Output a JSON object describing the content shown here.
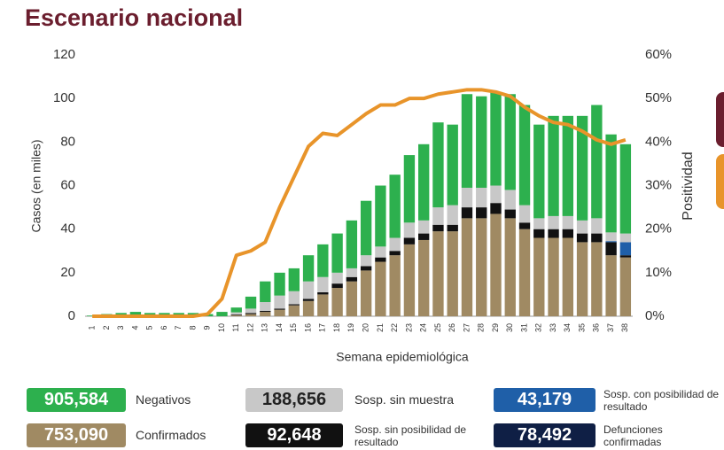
{
  "chart_data": {
    "type": "stacked-bar-line",
    "title": "Escenario nacional",
    "y_label": "Casos (en miles)",
    "y2_label": "Positividad",
    "x_label": "Semana epidemiológica",
    "categories": [
      "1",
      "2",
      "3",
      "4",
      "5",
      "6",
      "7",
      "8",
      "9",
      "10",
      "11",
      "12",
      "13",
      "14",
      "15",
      "16",
      "17",
      "18",
      "19",
      "20",
      "21",
      "22",
      "23",
      "24",
      "25",
      "26",
      "27",
      "28",
      "29",
      "30",
      "31",
      "32",
      "33",
      "34",
      "35",
      "36",
      "37",
      "38"
    ],
    "ylim": [
      0,
      120
    ],
    "yticks": [
      0,
      20,
      40,
      60,
      80,
      100,
      120
    ],
    "y2lim": [
      0,
      60
    ],
    "y2ticks": [
      {
        "value": 0,
        "label": "0%"
      },
      {
        "value": 10,
        "label": "10%"
      },
      {
        "value": 20,
        "label": "20%"
      },
      {
        "value": 30,
        "label": "30%"
      },
      {
        "value": 40,
        "label": "40%"
      },
      {
        "value": 50,
        "label": "50%"
      },
      {
        "value": 60,
        "label": "60%"
      }
    ],
    "series": [
      {
        "name": "Confirmados",
        "color": "#a08a63",
        "total": 753090,
        "total_label": "753,090",
        "values": [
          0,
          0,
          0,
          0,
          0,
          0,
          0,
          0,
          0,
          0,
          0.5,
          1,
          2,
          3,
          5,
          7,
          10,
          13,
          16,
          21,
          25,
          28,
          33,
          35,
          39,
          39,
          45,
          45,
          47,
          45,
          40,
          36,
          36,
          36,
          34,
          34,
          28,
          27
        ]
      },
      {
        "name": "Sosp. sin posibilidad de resultado",
        "color": "#111111",
        "total": 92648,
        "total_label": "92,648",
        "values": [
          0,
          0,
          0,
          0,
          0,
          0,
          0,
          0,
          0,
          0,
          0.3,
          0.5,
          0.5,
          0.5,
          0.5,
          1,
          1,
          2,
          2,
          2,
          2,
          2,
          3,
          3,
          3,
          3,
          5,
          5,
          5,
          4,
          3,
          4,
          4,
          4,
          4,
          4,
          6,
          1
        ]
      },
      {
        "name": "Sosp. con posibilidad de resultado",
        "color": "#1f5fa8",
        "total": 43179,
        "total_label": "43,179",
        "values": [
          0,
          0,
          0,
          0,
          0,
          0,
          0,
          0,
          0,
          0,
          0,
          0,
          0,
          0,
          0,
          0,
          0,
          0,
          0,
          0,
          0,
          0,
          0,
          0,
          0,
          0,
          0,
          0,
          0,
          0,
          0,
          0,
          0,
          0,
          0,
          0,
          0.5,
          6
        ]
      },
      {
        "name": "Sosp. sin muestra",
        "color": "#c8c8c8",
        "total": 188656,
        "total_label": "188,656",
        "values": [
          0,
          0,
          0,
          0,
          0,
          0,
          0,
          0,
          0,
          0,
          1,
          2,
          4,
          6,
          6,
          8,
          7,
          5,
          4,
          5,
          5,
          6,
          7,
          6,
          8,
          9,
          9,
          9,
          8,
          9,
          8,
          5,
          6,
          6,
          6,
          7,
          4,
          4
        ]
      },
      {
        "name": "Negativos",
        "color": "#2db04e",
        "total": 905584,
        "total_label": "905,584",
        "values": [
          0.3,
          1,
          1.5,
          2,
          1.5,
          1.5,
          1.5,
          1.5,
          1,
          2,
          2.2,
          5.5,
          9.5,
          10.5,
          10.5,
          12,
          15,
          18,
          22,
          25,
          28,
          29,
          31,
          35,
          39,
          37,
          43,
          42,
          43,
          44,
          46,
          43,
          46,
          46,
          48,
          52,
          45,
          41
        ]
      }
    ],
    "positivity": {
      "color": "#e8942a",
      "axis": "y2",
      "values": [
        0,
        0,
        0,
        0,
        0,
        0,
        0,
        0,
        0.5,
        4,
        14,
        15,
        17,
        25,
        32,
        39,
        42,
        41.5,
        44,
        46.5,
        48.5,
        48.5,
        50,
        50,
        51,
        51.5,
        52,
        52,
        51.5,
        50.5,
        48,
        46,
        44.5,
        44,
        42.5,
        40.5,
        39.5,
        40.5
      ]
    },
    "deaths": {
      "name": "Defunciones confirmadas",
      "color": "#0f1f45",
      "total": 78492,
      "total_label": "78,492"
    }
  }
}
